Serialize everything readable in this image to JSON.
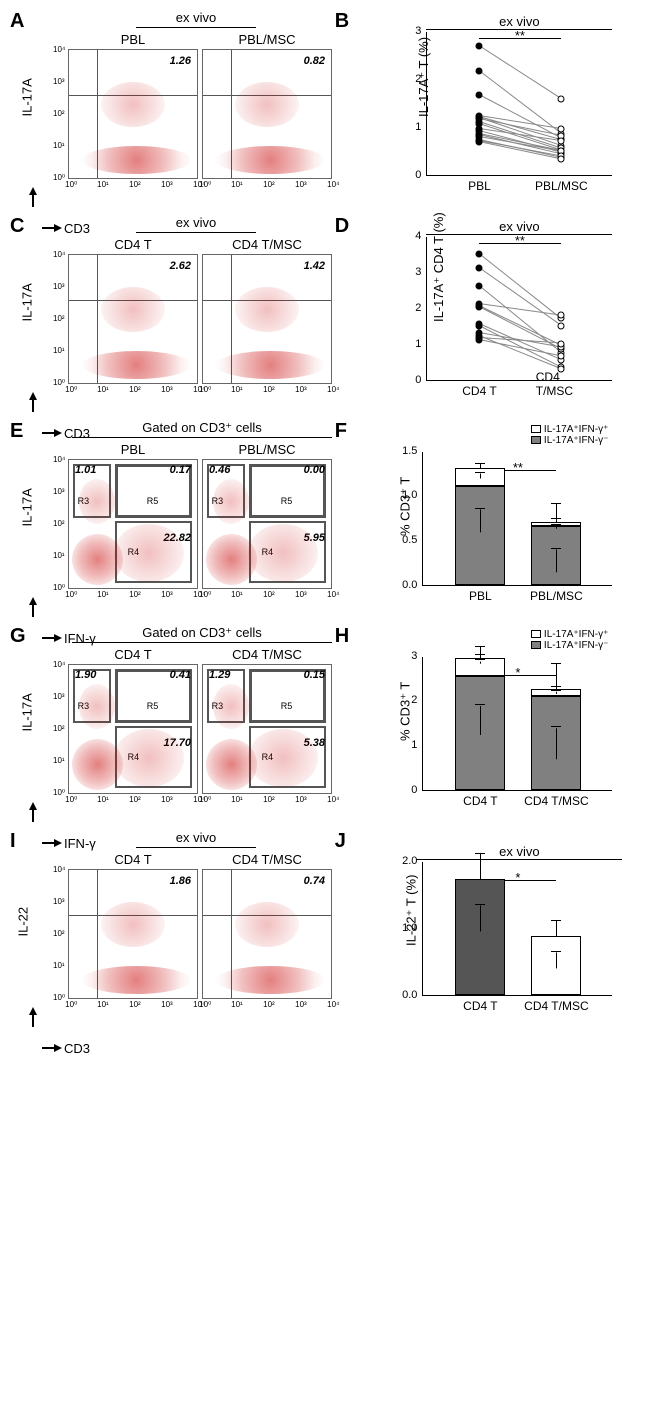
{
  "panels": {
    "A": {
      "header": "ex vivo",
      "plots": [
        {
          "title": "PBL",
          "val": "1.26",
          "quad_h": 35,
          "quad_v": 22
        },
        {
          "title": "PBL/MSC",
          "val": "0.82",
          "quad_h": 35,
          "quad_v": 22
        }
      ],
      "y_axis": "IL-17A",
      "x_axis": "CD3"
    },
    "B": {
      "header": "ex vivo",
      "ylabel": "IL-17A⁺ T (%)",
      "ymax": 3,
      "ytick_step": 1,
      "sig": "**",
      "xlabels": [
        "PBL",
        "PBL/MSC"
      ],
      "pairs": [
        [
          2.68,
          1.58
        ],
        [
          2.15,
          0.85
        ],
        [
          1.65,
          0.75
        ],
        [
          1.22,
          0.95
        ],
        [
          1.2,
          0.72
        ],
        [
          1.18,
          0.6
        ],
        [
          1.15,
          0.8
        ],
        [
          1.1,
          0.55
        ],
        [
          1.05,
          0.5
        ],
        [
          0.95,
          0.7
        ],
        [
          0.9,
          0.45
        ],
        [
          0.85,
          0.5
        ],
        [
          0.82,
          0.42
        ],
        [
          0.78,
          0.48
        ],
        [
          0.72,
          0.35
        ],
        [
          0.7,
          0.38
        ],
        [
          0.68,
          0.32
        ]
      ]
    },
    "C": {
      "header": "ex vivo",
      "plots": [
        {
          "title": "CD4 T",
          "val": "2.62",
          "quad_h": 35,
          "quad_v": 22
        },
        {
          "title": "CD4 T/MSC",
          "val": "1.42",
          "quad_h": 35,
          "quad_v": 22
        }
      ],
      "y_axis": "IL-17A",
      "x_axis": "CD3"
    },
    "D": {
      "header": "ex vivo",
      "ylabel": "IL-17A⁺ CD4 T (%)",
      "ymax": 4,
      "ytick_step": 1,
      "sig": "**",
      "xlabels": [
        "CD4 T",
        "CD4 T/MSC"
      ],
      "pairs": [
        [
          3.5,
          1.7
        ],
        [
          3.1,
          1.5
        ],
        [
          2.6,
          0.75
        ],
        [
          2.1,
          1.78
        ],
        [
          2.05,
          0.95
        ],
        [
          2.02,
          0.85
        ],
        [
          1.55,
          0.55
        ],
        [
          1.5,
          0.35
        ],
        [
          1.3,
          0.9
        ],
        [
          1.2,
          0.28
        ],
        [
          1.15,
          1.0
        ],
        [
          1.1,
          0.65
        ]
      ]
    },
    "E": {
      "header": "Gated on CD3⁺ cells",
      "plots": [
        {
          "title": "PBL",
          "vals": {
            "ul": "1.01",
            "ur": "0.17",
            "lr": "22.82"
          },
          "gates": true
        },
        {
          "title": "PBL/MSC",
          "vals": {
            "ul": "0.46",
            "ur": "0.00",
            "lr": "5.95"
          },
          "gates": true
        }
      ],
      "y_axis": "IL-17A",
      "x_axis": "IFN-γ"
    },
    "F": {
      "legend": [
        {
          "label": "IL-17A⁺IFN-γ⁺",
          "color": "#ffffff"
        },
        {
          "label": "IL-17A⁺IFN-γ⁻",
          "color": "#808080"
        }
      ],
      "ylabel": "% CD3⁺ T",
      "ymax": 1.5,
      "ytick_step": 0.5,
      "sig": "**",
      "xlabels": [
        "PBL",
        "PBL/MSC"
      ],
      "bars": [
        {
          "segs": [
            {
              "v": 1.1,
              "c": "#808080",
              "err": 0.25
            },
            {
              "v": 0.2,
              "c": "#ffffff",
              "err": 0.05
            }
          ]
        },
        {
          "segs": [
            {
              "v": 0.65,
              "c": "#808080",
              "err": 0.25
            },
            {
              "v": 0.05,
              "c": "#ffffff",
              "err": 0.03
            }
          ]
        }
      ]
    },
    "G": {
      "header": "Gated on CD3⁺ cells",
      "plots": [
        {
          "title": "CD4 T",
          "vals": {
            "ul": "1.90",
            "ur": "0.41",
            "lr": "17.70"
          },
          "gates": true
        },
        {
          "title": "CD4 T/MSC",
          "vals": {
            "ul": "1.29",
            "ur": "0.15",
            "lr": "5.38"
          },
          "gates": true
        }
      ],
      "y_axis": "IL-17A",
      "x_axis": "IFN-γ"
    },
    "H": {
      "legend": [
        {
          "label": "IL-17A⁺IFN-γ⁺",
          "color": "#ffffff"
        },
        {
          "label": "IL-17A⁺IFN-γ⁻",
          "color": "#808080"
        }
      ],
      "ylabel": "% CD3⁺ T",
      "ymax": 3.0,
      "ytick_step": 1.0,
      "sig": "*",
      "xlabels": [
        "CD4 T",
        "CD4 T/MSC"
      ],
      "bars": [
        {
          "segs": [
            {
              "v": 2.55,
              "c": "#808080",
              "err": 0.65
            },
            {
              "v": 0.4,
              "c": "#ffffff",
              "err": 0.06
            }
          ]
        },
        {
          "segs": [
            {
              "v": 2.1,
              "c": "#808080",
              "err": 0.7
            },
            {
              "v": 0.15,
              "c": "#ffffff",
              "err": 0.04
            }
          ]
        }
      ]
    },
    "I": {
      "header": "ex vivo",
      "plots": [
        {
          "title": "CD4 T",
          "val": "1.86",
          "quad_h": 35,
          "quad_v": 22
        },
        {
          "title": "CD4 T/MSC",
          "val": "0.74",
          "quad_h": 35,
          "quad_v": 22
        }
      ],
      "y_axis": "IL-22",
      "x_axis": "CD3"
    },
    "J": {
      "header": "ex vivo",
      "ylabel": "IL-22⁺ T (%)",
      "ymax": 2.0,
      "ytick_step": 1.0,
      "sig": "*",
      "xlabels": [
        "CD4 T",
        "CD4 T/MSC"
      ],
      "bars": [
        {
          "segs": [
            {
              "v": 1.72,
              "c": "#555555",
              "err": 0.38
            }
          ]
        },
        {
          "segs": [
            {
              "v": 0.87,
              "c": "#ffffff",
              "err": 0.23
            }
          ]
        }
      ]
    }
  },
  "log_ticks": [
    "10⁰",
    "10¹",
    "10²",
    "10³",
    "10⁴"
  ],
  "colors": {
    "dot_fill": "#000",
    "dot_open": "#fff",
    "line": "#888"
  }
}
